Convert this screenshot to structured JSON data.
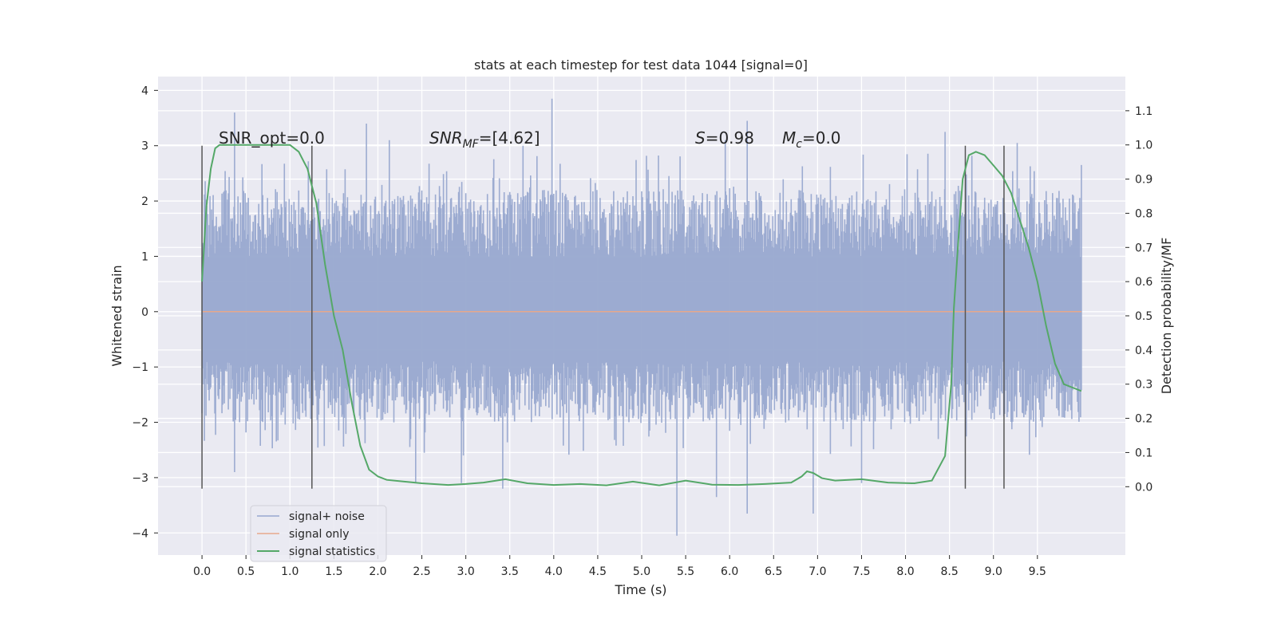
{
  "chart_data": {
    "type": "line",
    "title": "stats at each timestep for test data 1044 [signal=0]",
    "xlabel": "Time (s)",
    "ylabel": "Whitened strain",
    "ylabel_right": "Detection probability/MF",
    "xlim": [
      -0.5,
      10.5
    ],
    "ylim": [
      -4.4,
      4.25
    ],
    "ylim_right": [
      -0.2,
      1.2
    ],
    "x_ticks": [
      "0.0",
      "0.5",
      "1.0",
      "1.5",
      "2.0",
      "2.5",
      "3.0",
      "3.5",
      "4.0",
      "4.5",
      "5.0",
      "5.5",
      "6.0",
      "6.5",
      "7.0",
      "7.5",
      "8.0",
      "8.5",
      "9.0",
      "9.5"
    ],
    "y_ticks": [
      "4",
      "3",
      "2",
      "1",
      "0",
      "−1",
      "−2",
      "−3",
      "−4"
    ],
    "y_ticks_right": [
      "1.1",
      "1.0",
      "0.9",
      "0.8",
      "0.7",
      "0.6",
      "0.5",
      "0.4",
      "0.3",
      "0.2",
      "0.1",
      "0.0"
    ],
    "grid": true,
    "legend_placement": "lower-left",
    "colors": {
      "plot_background": "#EAEAF2",
      "grid": "#FFFFFF",
      "noise": "#98A8CF",
      "signal_only": "#E7A88B",
      "statistics": "#55A868",
      "markers": "#555555"
    },
    "annotations": {
      "snr_opt": "SNR_opt=0.0",
      "snr_mf_it": "SNR",
      "snr_mf_sub": "MF",
      "snr_mf_val": "=[4.62]",
      "s_it": "S",
      "s_val": "=0.98",
      "mc_it": "M",
      "mc_sub": "c",
      "mc_val": "=0.0"
    },
    "vertical_markers_x": [
      0.0,
      1.25,
      8.68,
      9.12
    ],
    "series": [
      {
        "name": "signal+ noise",
        "axis": "left",
        "style": "dense noise band",
        "x_range": [
          0.0,
          10.0
        ],
        "typical_range": [
          -2.0,
          2.2
        ],
        "peaks": [
          {
            "x": 0.37,
            "y": 3.6
          },
          {
            "x": 1.87,
            "y": 3.4
          },
          {
            "x": 2.13,
            "y": 3.1
          },
          {
            "x": 3.65,
            "y": 3.0
          },
          {
            "x": 3.98,
            "y": 3.85
          },
          {
            "x": 5.95,
            "y": 3.1
          },
          {
            "x": 6.2,
            "y": 3.45
          },
          {
            "x": 8.45,
            "y": 3.25
          },
          {
            "x": 9.27,
            "y": 3.05
          }
        ],
        "troughs": [
          {
            "x": 0.37,
            "y": -2.9
          },
          {
            "x": 2.43,
            "y": -3.1
          },
          {
            "x": 2.95,
            "y": -3.1
          },
          {
            "x": 3.42,
            "y": -3.2
          },
          {
            "x": 5.4,
            "y": -4.05
          },
          {
            "x": 5.85,
            "y": -3.35
          },
          {
            "x": 6.2,
            "y": -3.65
          },
          {
            "x": 6.95,
            "y": -3.65
          },
          {
            "x": 7.5,
            "y": -3.1
          }
        ]
      },
      {
        "name": "signal only",
        "axis": "left",
        "x": [
          0.0,
          10.0
        ],
        "y": [
          0.0,
          0.0
        ]
      },
      {
        "name": "signal statistics",
        "axis": "right",
        "x": [
          0.0,
          0.05,
          0.1,
          0.15,
          0.2,
          0.3,
          0.4,
          0.6,
          0.8,
          1.0,
          1.1,
          1.2,
          1.3,
          1.4,
          1.5,
          1.6,
          1.7,
          1.8,
          1.9,
          2.0,
          2.1,
          2.3,
          2.5,
          2.8,
          3.0,
          3.2,
          3.45,
          3.7,
          4.0,
          4.3,
          4.6,
          4.9,
          5.2,
          5.5,
          5.8,
          6.1,
          6.4,
          6.7,
          6.82,
          6.88,
          6.95,
          7.05,
          7.2,
          7.5,
          7.8,
          8.1,
          8.3,
          8.45,
          8.52,
          8.55,
          8.6,
          8.65,
          8.72,
          8.8,
          8.9,
          9.0,
          9.1,
          9.2,
          9.3,
          9.4,
          9.5,
          9.6,
          9.7,
          9.8,
          9.9,
          10.0
        ],
        "y": [
          0.6,
          0.82,
          0.93,
          0.99,
          1.0,
          1.0,
          1.0,
          1.0,
          1.0,
          1.0,
          0.98,
          0.93,
          0.83,
          0.65,
          0.5,
          0.4,
          0.25,
          0.12,
          0.05,
          0.03,
          0.02,
          0.015,
          0.01,
          0.005,
          0.008,
          0.012,
          0.022,
          0.01,
          0.005,
          0.008,
          0.004,
          0.015,
          0.004,
          0.018,
          0.006,
          0.005,
          0.008,
          0.012,
          0.03,
          0.045,
          0.04,
          0.025,
          0.018,
          0.022,
          0.012,
          0.01,
          0.018,
          0.09,
          0.3,
          0.52,
          0.72,
          0.9,
          0.97,
          0.98,
          0.97,
          0.94,
          0.91,
          0.86,
          0.78,
          0.7,
          0.6,
          0.47,
          0.36,
          0.3,
          0.29,
          0.28
        ]
      }
    ]
  }
}
